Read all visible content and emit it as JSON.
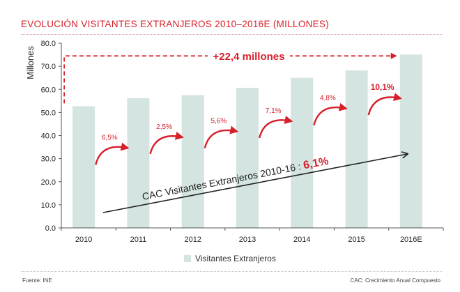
{
  "chart_data": {
    "type": "bar",
    "title": "EVOLUCIÓN VISITANTES EXTRANJEROS 2010–2016E (MILLONES)",
    "ylabel": "Millones",
    "xlabel": "",
    "ylim": [
      0,
      80
    ],
    "yticks": [
      "0.0",
      "10.0",
      "20.0",
      "30.0",
      "40.0",
      "50.0",
      "60.0",
      "70.0",
      "80.0"
    ],
    "yticks_values": [
      0,
      10,
      20,
      30,
      40,
      50,
      60,
      70,
      80
    ],
    "categories": [
      "2010",
      "2011",
      "2012",
      "2013",
      "2014",
      "2015",
      "2016E"
    ],
    "series": [
      {
        "name": "Visitantes Extranjeros",
        "color": "#d3e4e1",
        "values": [
          52.7,
          56.2,
          57.5,
          60.7,
          65.0,
          68.2,
          75.1
        ]
      }
    ],
    "growth_labels": [
      "6,5%",
      "2,5%",
      "5,6%",
      "7,1%",
      "4,8%",
      "10,1%"
    ],
    "total_increase_label": "+22,4 millones",
    "cac_label": "CAC Visitantes Extranjeros 2010-16 : ",
    "cac_value": "6,1%",
    "legend": [
      "Visitantes Extranjeros"
    ],
    "legend_position": "bottom",
    "grid": false
  },
  "colors": {
    "accent": "#d6202a",
    "bar": "#d3e4e1",
    "axis": "#555555",
    "trend": "#222222"
  },
  "footer": {
    "source": "Fuente: INE",
    "cac_note": "CAC: Crecimiento Anual Compuesto"
  }
}
